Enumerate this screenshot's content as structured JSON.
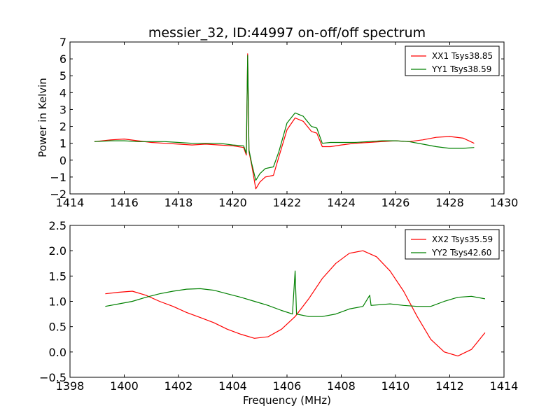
{
  "chart_data": [
    {
      "type": "line",
      "title": "messier_32, ID:44997 on-off/off spectrum",
      "xlabel": "",
      "ylabel": "Power in Kelvin",
      "xlim": [
        1414,
        1430
      ],
      "ylim": [
        -2,
        7
      ],
      "xticks": [
        1414,
        1416,
        1418,
        1420,
        1422,
        1424,
        1426,
        1428,
        1430
      ],
      "yticks": [
        -2,
        -1,
        0,
        1,
        2,
        3,
        4,
        5,
        6,
        7
      ],
      "legend_position": "top-right",
      "grid": false,
      "series": [
        {
          "name": "XX1 Tsys38.85",
          "color": "#ff0000",
          "points": [
            [
              1414.9,
              1.1
            ],
            [
              1415.5,
              1.2
            ],
            [
              1416.0,
              1.25
            ],
            [
              1416.5,
              1.15
            ],
            [
              1417.0,
              1.05
            ],
            [
              1417.5,
              1.0
            ],
            [
              1418.0,
              0.95
            ],
            [
              1418.5,
              0.9
            ],
            [
              1419.0,
              0.95
            ],
            [
              1419.5,
              0.9
            ],
            [
              1420.0,
              0.85
            ],
            [
              1420.4,
              0.75
            ],
            [
              1420.5,
              0.3
            ],
            [
              1420.55,
              6.3
            ],
            [
              1420.6,
              0.5
            ],
            [
              1420.7,
              -0.3
            ],
            [
              1420.85,
              -1.7
            ],
            [
              1421.0,
              -1.3
            ],
            [
              1421.2,
              -1.0
            ],
            [
              1421.5,
              -0.9
            ],
            [
              1421.7,
              0.2
            ],
            [
              1422.0,
              1.8
            ],
            [
              1422.3,
              2.5
            ],
            [
              1422.6,
              2.3
            ],
            [
              1422.9,
              1.7
            ],
            [
              1423.1,
              1.6
            ],
            [
              1423.3,
              0.8
            ],
            [
              1423.6,
              0.8
            ],
            [
              1424.0,
              0.9
            ],
            [
              1424.5,
              1.0
            ],
            [
              1425.0,
              1.05
            ],
            [
              1425.5,
              1.1
            ],
            [
              1426.0,
              1.15
            ],
            [
              1426.5,
              1.1
            ],
            [
              1427.0,
              1.2
            ],
            [
              1427.5,
              1.35
            ],
            [
              1428.0,
              1.4
            ],
            [
              1428.5,
              1.3
            ],
            [
              1428.9,
              1.0
            ]
          ]
        },
        {
          "name": "YY1 Tsys38.59",
          "color": "#008000",
          "points": [
            [
              1414.9,
              1.1
            ],
            [
              1415.5,
              1.15
            ],
            [
              1416.0,
              1.15
            ],
            [
              1416.5,
              1.1
            ],
            [
              1417.0,
              1.1
            ],
            [
              1417.5,
              1.1
            ],
            [
              1418.0,
              1.05
            ],
            [
              1418.5,
              1.0
            ],
            [
              1419.0,
              1.0
            ],
            [
              1419.5,
              1.0
            ],
            [
              1420.0,
              0.9
            ],
            [
              1420.4,
              0.85
            ],
            [
              1420.5,
              0.4
            ],
            [
              1420.55,
              6.2
            ],
            [
              1420.6,
              0.6
            ],
            [
              1420.7,
              -0.2
            ],
            [
              1420.85,
              -1.2
            ],
            [
              1421.0,
              -0.8
            ],
            [
              1421.2,
              -0.5
            ],
            [
              1421.5,
              -0.4
            ],
            [
              1421.7,
              0.5
            ],
            [
              1422.0,
              2.2
            ],
            [
              1422.3,
              2.8
            ],
            [
              1422.6,
              2.6
            ],
            [
              1422.9,
              2.0
            ],
            [
              1423.1,
              1.9
            ],
            [
              1423.3,
              1.0
            ],
            [
              1423.6,
              1.05
            ],
            [
              1424.0,
              1.05
            ],
            [
              1424.5,
              1.05
            ],
            [
              1425.0,
              1.1
            ],
            [
              1425.5,
              1.15
            ],
            [
              1426.0,
              1.15
            ],
            [
              1426.5,
              1.1
            ],
            [
              1427.0,
              0.95
            ],
            [
              1427.5,
              0.8
            ],
            [
              1428.0,
              0.7
            ],
            [
              1428.5,
              0.7
            ],
            [
              1428.9,
              0.75
            ]
          ]
        }
      ]
    },
    {
      "type": "line",
      "title": "",
      "xlabel": "Frequency (MHz)",
      "ylabel": "",
      "xlim": [
        1398,
        1414
      ],
      "ylim": [
        -0.5,
        2.5
      ],
      "xticks": [
        1398,
        1400,
        1402,
        1404,
        1406,
        1408,
        1410,
        1412,
        1414
      ],
      "yticks": [
        -0.5,
        0.0,
        0.5,
        1.0,
        1.5,
        2.0,
        2.5
      ],
      "ytick_labels": [
        "−0.5",
        "0.0",
        "0.5",
        "1.0",
        "1.5",
        "2.0",
        "2.5"
      ],
      "legend_position": "top-right",
      "grid": false,
      "series": [
        {
          "name": "XX2 Tsys35.59",
          "color": "#ff0000",
          "points": [
            [
              1399.3,
              1.15
            ],
            [
              1399.8,
              1.18
            ],
            [
              1400.3,
              1.2
            ],
            [
              1400.8,
              1.12
            ],
            [
              1401.3,
              1.0
            ],
            [
              1401.8,
              0.9
            ],
            [
              1402.3,
              0.78
            ],
            [
              1402.8,
              0.68
            ],
            [
              1403.3,
              0.58
            ],
            [
              1403.8,
              0.45
            ],
            [
              1404.3,
              0.35
            ],
            [
              1404.8,
              0.27
            ],
            [
              1405.3,
              0.3
            ],
            [
              1405.8,
              0.45
            ],
            [
              1406.3,
              0.7
            ],
            [
              1406.8,
              1.05
            ],
            [
              1407.3,
              1.45
            ],
            [
              1407.8,
              1.75
            ],
            [
              1408.3,
              1.95
            ],
            [
              1408.8,
              2.0
            ],
            [
              1409.3,
              1.88
            ],
            [
              1409.8,
              1.6
            ],
            [
              1410.3,
              1.2
            ],
            [
              1410.8,
              0.7
            ],
            [
              1411.3,
              0.25
            ],
            [
              1411.8,
              0.0
            ],
            [
              1412.3,
              -0.08
            ],
            [
              1412.8,
              0.05
            ],
            [
              1413.3,
              0.38
            ]
          ]
        },
        {
          "name": "YY2 Tsys42.60",
          "color": "#008000",
          "points": [
            [
              1399.3,
              0.9
            ],
            [
              1399.8,
              0.95
            ],
            [
              1400.3,
              1.0
            ],
            [
              1400.8,
              1.08
            ],
            [
              1401.3,
              1.15
            ],
            [
              1401.8,
              1.2
            ],
            [
              1402.3,
              1.24
            ],
            [
              1402.8,
              1.25
            ],
            [
              1403.3,
              1.22
            ],
            [
              1403.8,
              1.15
            ],
            [
              1404.3,
              1.08
            ],
            [
              1404.8,
              1.0
            ],
            [
              1405.3,
              0.92
            ],
            [
              1405.8,
              0.82
            ],
            [
              1406.2,
              0.75
            ],
            [
              1406.3,
              1.6
            ],
            [
              1406.35,
              0.75
            ],
            [
              1406.8,
              0.7
            ],
            [
              1407.3,
              0.7
            ],
            [
              1407.8,
              0.75
            ],
            [
              1408.3,
              0.85
            ],
            [
              1408.8,
              0.9
            ],
            [
              1409.05,
              1.12
            ],
            [
              1409.1,
              0.92
            ],
            [
              1409.8,
              0.95
            ],
            [
              1410.3,
              0.92
            ],
            [
              1410.8,
              0.9
            ],
            [
              1411.3,
              0.9
            ],
            [
              1411.8,
              1.0
            ],
            [
              1412.3,
              1.08
            ],
            [
              1412.8,
              1.1
            ],
            [
              1413.3,
              1.05
            ]
          ]
        }
      ]
    }
  ]
}
